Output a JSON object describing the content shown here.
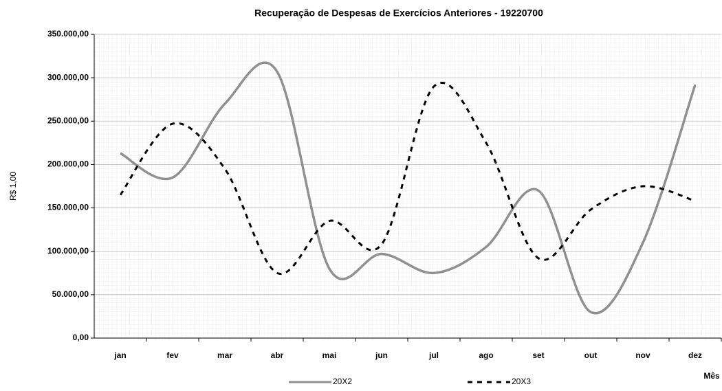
{
  "chart_data": {
    "type": "line",
    "title": "Recuperação de Despesas de Exercícios Anteriores - 19220700",
    "x_label": "Mês",
    "y_label": "R$ 1,00",
    "categories": [
      "jan",
      "fev",
      "mar",
      "abr",
      "mai",
      "jun",
      "jul",
      "ago",
      "set",
      "out",
      "nov",
      "dez"
    ],
    "series": [
      {
        "name": "20X2",
        "color": "#909090",
        "dashed": false,
        "values": [
          213000,
          185000,
          270000,
          307000,
          80000,
          97000,
          75000,
          105000,
          170000,
          30000,
          110000,
          292000
        ]
      },
      {
        "name": "20X3",
        "color": "#000000",
        "dashed": true,
        "values": [
          165000,
          247000,
          195000,
          75000,
          135000,
          108000,
          290000,
          225000,
          92000,
          148000,
          175000,
          158000
        ]
      }
    ],
    "ylim": [
      0,
      350000
    ],
    "yticks": [
      {
        "value": 0,
        "label": "0,00"
      },
      {
        "value": 50000,
        "label": "50.000,00"
      },
      {
        "value": 100000,
        "label": "100.000,00"
      },
      {
        "value": 150000,
        "label": "150.000,00"
      },
      {
        "value": 200000,
        "label": "200.000,00"
      },
      {
        "value": 250000,
        "label": "250.000,00"
      },
      {
        "value": 300000,
        "label": "300.000,00"
      },
      {
        "value": 350000,
        "label": "350.000,00"
      }
    ],
    "grid": true,
    "legend": "bottom"
  }
}
